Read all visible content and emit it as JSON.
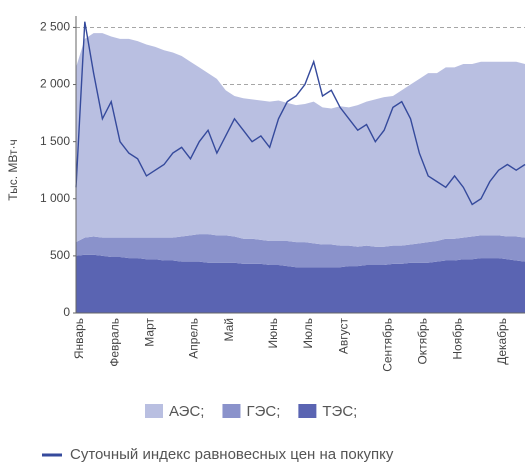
{
  "chart_data": {
    "type": "stacked_area_line",
    "y_label": "Тыс. МВт·ч",
    "categories": [
      "Январь",
      null,
      null,
      null,
      "Февраль",
      null,
      null,
      null,
      "Март",
      null,
      null,
      null,
      null,
      "Апрель",
      null,
      null,
      null,
      "Май",
      null,
      null,
      null,
      null,
      "Июнь",
      null,
      null,
      null,
      "Июль",
      null,
      null,
      null,
      "Август",
      null,
      null,
      null,
      null,
      "Сентябрь",
      null,
      null,
      null,
      "Октябрь",
      null,
      null,
      null,
      "Ноябрь",
      null,
      null,
      null,
      null,
      "Декабрь",
      null,
      null,
      null
    ],
    "ylim": [
      0,
      2600
    ],
    "yticks": [
      0,
      500,
      {
        "value": 1000,
        "label": "1 000"
      },
      {
        "value": 1500,
        "label": "1 500"
      },
      {
        "value": 2000,
        "label": "2 000"
      },
      {
        "value": 2500,
        "label": "2 500"
      }
    ],
    "grid": true,
    "series": [
      {
        "name": "ТЭС;",
        "color": "#5a64b2",
        "values": [
          500,
          510,
          510,
          500,
          490,
          490,
          480,
          480,
          470,
          470,
          460,
          460,
          450,
          450,
          450,
          440,
          440,
          440,
          440,
          430,
          430,
          430,
          420,
          420,
          410,
          400,
          400,
          400,
          400,
          400,
          400,
          410,
          410,
          420,
          420,
          420,
          430,
          430,
          440,
          440,
          440,
          450,
          460,
          460,
          470,
          470,
          480,
          480,
          480,
          470,
          460,
          450
        ]
      },
      {
        "name": "ГЭС;",
        "color": "#8a92cb",
        "values": [
          120,
          150,
          160,
          160,
          170,
          170,
          180,
          180,
          190,
          190,
          200,
          200,
          220,
          230,
          240,
          250,
          240,
          240,
          230,
          220,
          220,
          210,
          210,
          210,
          220,
          220,
          220,
          210,
          200,
          200,
          190,
          180,
          170,
          170,
          160,
          160,
          160,
          160,
          160,
          170,
          180,
          180,
          190,
          190,
          190,
          200,
          200,
          200,
          200,
          200,
          210,
          210
        ]
      },
      {
        "name": "АЭС;",
        "color": "#b9bfe1",
        "values": [
          1530,
          1740,
          1780,
          1790,
          1760,
          1740,
          1740,
          1720,
          1690,
          1670,
          1640,
          1620,
          1580,
          1520,
          1460,
          1410,
          1370,
          1270,
          1230,
          1230,
          1220,
          1220,
          1220,
          1230,
          1210,
          1200,
          1210,
          1240,
          1200,
          1190,
          1220,
          1210,
          1240,
          1260,
          1290,
          1310,
          1310,
          1360,
          1400,
          1440,
          1480,
          1470,
          1500,
          1500,
          1520,
          1510,
          1520,
          1520,
          1520,
          1530,
          1530,
          1520
        ]
      }
    ],
    "line": {
      "name": "Суточный индекс равновесных цен на покупку",
      "color": "#354a9c",
      "values": [
        1100,
        2550,
        2100,
        1700,
        1850,
        1500,
        1400,
        1350,
        1200,
        1250,
        1300,
        1400,
        1450,
        1350,
        1500,
        1600,
        1400,
        1550,
        1700,
        1600,
        1500,
        1550,
        1450,
        1700,
        1850,
        1900,
        2000,
        2200,
        1900,
        1950,
        1800,
        1700,
        1600,
        1650,
        1500,
        1600,
        1800,
        1850,
        1700,
        1400,
        1200,
        1150,
        1100,
        1200,
        1100,
        950,
        1000,
        1150,
        1250,
        1300,
        1250,
        1300
      ]
    }
  }
}
